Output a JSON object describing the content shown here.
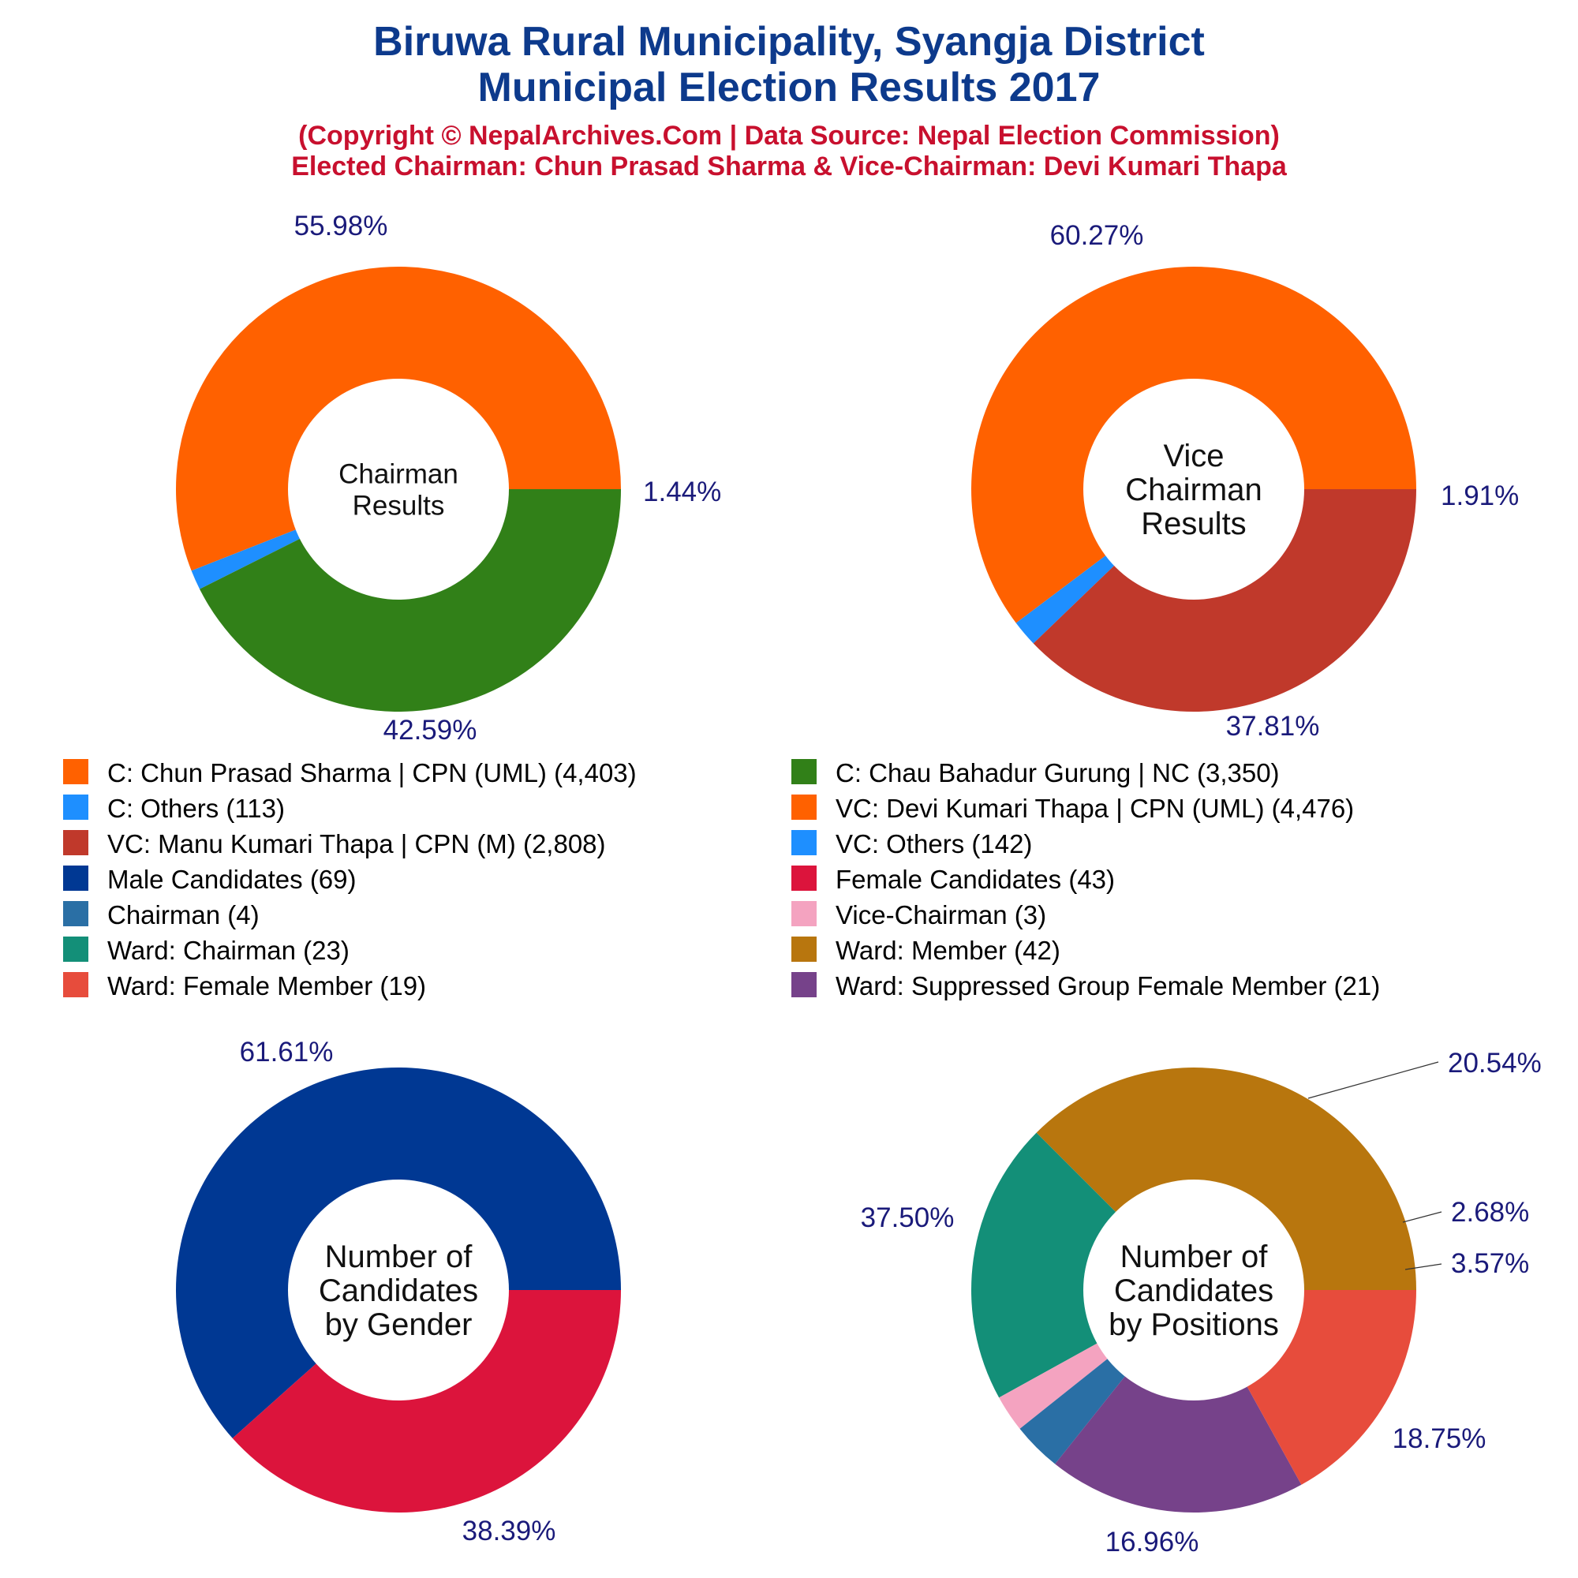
{
  "title_lines": [
    "Biruwa Rural Municipality, Syangja District",
    "Municipal Election Results 2017"
  ],
  "subtitle_lines": [
    "(Copyright © NepalArchives.Com | Data Source: Nepal Election Commission)",
    "Elected Chairman: Chun Prasad Sharma & Vice-Chairman: Devi Kumari Thapa"
  ],
  "legend": [
    {
      "label": "C: Chun Prasad Sharma | CPN (UML) (4,403)",
      "color": "#ff6100"
    },
    {
      "label": "C: Chau Bahadur Gurung | NC (3,350)",
      "color": "#318018"
    },
    {
      "label": "C: Others (113)",
      "color": "#1e8fff"
    },
    {
      "label": "VC: Devi Kumari Thapa | CPN (UML) (4,476)",
      "color": "#ff6100"
    },
    {
      "label": "VC: Manu Kumari Thapa | CPN (M) (2,808)",
      "color": "#c0392b"
    },
    {
      "label": "VC: Others (142)",
      "color": "#1e8fff"
    },
    {
      "label": "Male Candidates (69)",
      "color": "#003893"
    },
    {
      "label": "Female Candidates (43)",
      "color": "#dc143c"
    },
    {
      "label": "Chairman (4)",
      "color": "#2a6fa5"
    },
    {
      "label": "Vice-Chairman (3)",
      "color": "#f4a3c0"
    },
    {
      "label": "Ward: Chairman (23)",
      "color": "#138f78"
    },
    {
      "label": "Ward: Member (42)",
      "color": "#b8760e"
    },
    {
      "label": "Ward: Female Member (19)",
      "color": "#e74c3c"
    },
    {
      "label": "Ward: Suppressed Group Female Member (21)",
      "color": "#76428a"
    }
  ],
  "chart_data": [
    {
      "type": "pie",
      "center_label": [
        "Chairman",
        "Results"
      ],
      "slices": [
        {
          "name": "C: Chun Prasad Sharma | CPN (UML)",
          "value": 4403,
          "color": "#ff6100",
          "label": "55.98%"
        },
        {
          "name": "C: Others",
          "value": 113,
          "color": "#1e8fff",
          "label": "1.44%"
        },
        {
          "name": "C: Chau Bahadur Gurung | NC",
          "value": 3350,
          "color": "#318018",
          "label": "42.59%"
        }
      ]
    },
    {
      "type": "pie",
      "center_label": [
        "Vice",
        "Chairman",
        "Results"
      ],
      "slices": [
        {
          "name": "VC: Devi Kumari Thapa | CPN (UML)",
          "value": 4476,
          "color": "#ff6100",
          "label": "60.27%"
        },
        {
          "name": "VC: Others",
          "value": 142,
          "color": "#1e8fff",
          "label": "1.91%"
        },
        {
          "name": "VC: Manu Kumari Thapa | CPN (M)",
          "value": 2808,
          "color": "#c0392b",
          "label": "37.81%"
        }
      ]
    },
    {
      "type": "pie",
      "center_label": [
        "Number of",
        "Candidates",
        "by Gender"
      ],
      "slices": [
        {
          "name": "Male Candidates",
          "value": 69,
          "color": "#003893",
          "label": "61.61%"
        },
        {
          "name": "Female Candidates",
          "value": 43,
          "color": "#dc143c",
          "label": "38.39%"
        }
      ]
    },
    {
      "type": "pie",
      "center_label": [
        "Number of",
        "Candidates",
        "by Positions"
      ],
      "slices": [
        {
          "name": "Ward: Member",
          "value": 42,
          "color": "#b8760e",
          "label": "37.50%"
        },
        {
          "name": "Ward: Chairman",
          "value": 23,
          "color": "#138f78",
          "label": "20.54%"
        },
        {
          "name": "Vice-Chairman",
          "value": 3,
          "color": "#f4a3c0",
          "label": "2.68%"
        },
        {
          "name": "Chairman",
          "value": 4,
          "color": "#2a6fa5",
          "label": "3.57%"
        },
        {
          "name": "Ward: Suppressed Group Female Member",
          "value": 21,
          "color": "#76428a",
          "label": "18.75%"
        },
        {
          "name": "Ward: Female Member",
          "value": 19,
          "color": "#e74c3c",
          "label": "16.96%"
        }
      ]
    }
  ]
}
